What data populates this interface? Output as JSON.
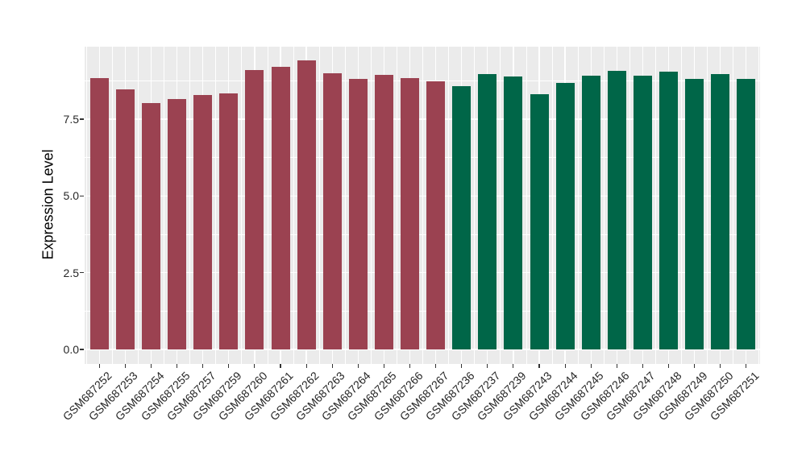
{
  "chart_data": {
    "type": "bar",
    "title": "",
    "xlabel": "",
    "ylabel": "Expression Level",
    "categories": [
      "GSM687252",
      "GSM687253",
      "GSM687254",
      "GSM687255",
      "GSM687257",
      "GSM687259",
      "GSM687260",
      "GSM687261",
      "GSM687262",
      "GSM687263",
      "GSM687264",
      "GSM687265",
      "GSM687266",
      "GSM687267",
      "GSM687236",
      "GSM687237",
      "GSM687239",
      "GSM687243",
      "GSM687244",
      "GSM687245",
      "GSM687246",
      "GSM687247",
      "GSM687248",
      "GSM687249",
      "GSM687250",
      "GSM687251"
    ],
    "values": [
      8.85,
      8.48,
      8.03,
      8.15,
      8.28,
      8.33,
      9.11,
      9.21,
      9.42,
      9.0,
      8.8,
      8.94,
      8.85,
      8.73,
      8.57,
      8.96,
      8.89,
      8.32,
      8.69,
      8.93,
      9.07,
      8.93,
      9.05,
      8.82,
      8.98,
      8.82
    ],
    "bar_group": [
      0,
      0,
      0,
      0,
      0,
      0,
      0,
      0,
      0,
      0,
      0,
      0,
      0,
      0,
      1,
      1,
      1,
      1,
      1,
      1,
      1,
      1,
      1,
      1,
      1,
      1
    ],
    "group_colors": [
      "#9B4251",
      "#006648"
    ],
    "y_ticks": {
      "values": [
        0,
        2.5,
        5,
        7.5
      ],
      "labels": [
        "0.0",
        "2.5",
        "5.0",
        "7.5"
      ]
    },
    "y_minor_ticks": [
      1.25,
      3.75,
      6.25,
      8.75
    ],
    "ylim": [
      -0.48,
      9.86
    ],
    "grid": "on",
    "legend": "none",
    "panel_background": "#EBEBEB",
    "grid_color": "#FFFFFF",
    "axis_text_color": "#262626",
    "tick_mark_color": "#333333"
  }
}
